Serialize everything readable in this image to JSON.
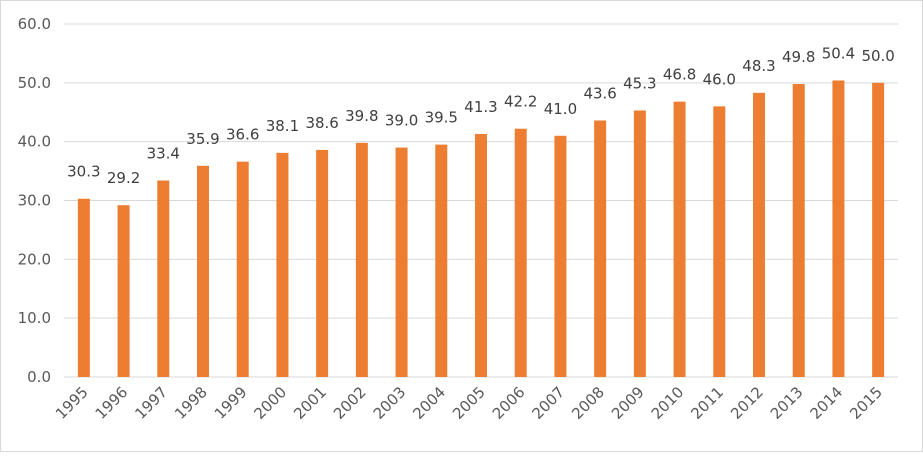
{
  "chart_data": {
    "type": "bar",
    "title": "",
    "xlabel": "",
    "ylabel": "",
    "categories": [
      "1995",
      "1996",
      "1997",
      "1998",
      "1999",
      "2000",
      "2001",
      "2002",
      "2003",
      "2004",
      "2005",
      "2006",
      "2007",
      "2008",
      "2009",
      "2010",
      "2011",
      "2012",
      "2013",
      "2014",
      "2015"
    ],
    "series": [
      {
        "values": [
          30.3,
          29.2,
          33.4,
          35.9,
          36.6,
          38.1,
          38.6,
          39.8,
          39.0,
          39.5,
          41.3,
          42.2,
          41.0,
          43.6,
          45.3,
          46.8,
          46.0,
          48.3,
          49.8,
          50.4,
          50.0
        ]
      }
    ],
    "ylim": [
      0,
      60
    ],
    "yticks": [
      "0.0",
      "10.0",
      "20.0",
      "30.0",
      "40.0",
      "50.0",
      "60.0"
    ],
    "grid": true,
    "legend": "none",
    "data_labels": true,
    "bar_color": "#ed7d31",
    "grid_color": "#d9d9d9"
  }
}
